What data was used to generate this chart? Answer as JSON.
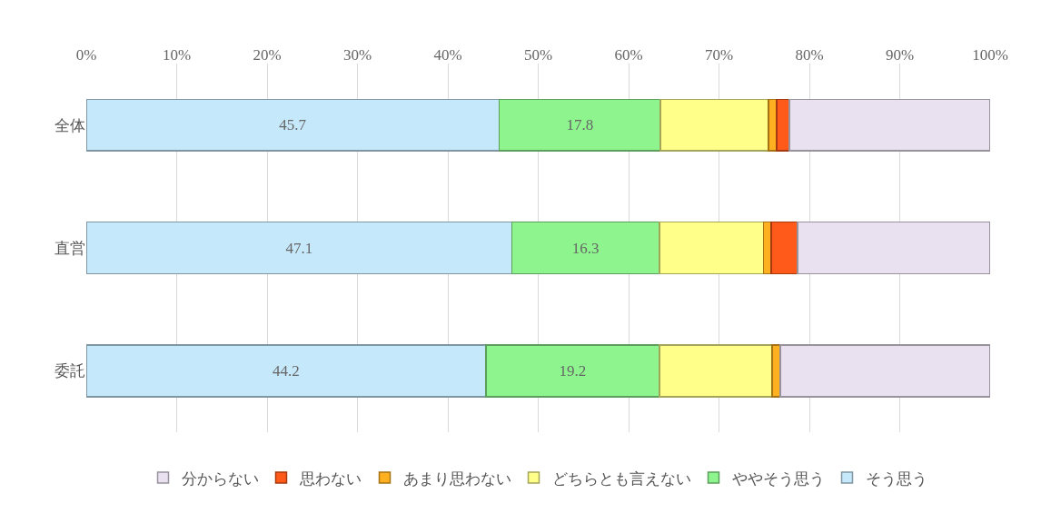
{
  "chart_data": {
    "type": "bar",
    "orientation": "horizontal",
    "stacked": true,
    "categories": [
      "全体",
      "直営",
      "委託"
    ],
    "series": [
      {
        "name": "そう思う",
        "color": "#c6e8fb",
        "values": [
          45.7,
          47.1,
          44.2
        ],
        "value_labels": [
          "45.7",
          "47.1",
          "44.2"
        ]
      },
      {
        "name": "ややそう思う",
        "color": "#8ef58e",
        "values": [
          17.8,
          16.3,
          19.2
        ],
        "value_labels": [
          "17.8",
          "16.3",
          "19.2"
        ]
      },
      {
        "name": "どちらとも言えない",
        "color": "#ffff8a",
        "values": [
          12.0,
          11.5,
          12.5
        ]
      },
      {
        "name": "あまり思わない",
        "color": "#ffb020",
        "values": [
          0.9,
          0.9,
          0.9
        ]
      },
      {
        "name": "思わない",
        "color": "#ff5a1a",
        "values": [
          1.4,
          2.9,
          0
        ]
      },
      {
        "name": "分からない",
        "color": "#e9e1f0",
        "values": [
          22.2,
          21.3,
          23.2
        ]
      }
    ],
    "xlim": [
      0,
      100
    ],
    "xticks": [
      {
        "value": 0,
        "label": "0%"
      },
      {
        "value": 10,
        "label": "10%"
      },
      {
        "value": 20,
        "label": "20%"
      },
      {
        "value": 30,
        "label": "30%"
      },
      {
        "value": 40,
        "label": "40%"
      },
      {
        "value": 50,
        "label": "50%"
      },
      {
        "value": 60,
        "label": "60%"
      },
      {
        "value": 70,
        "label": "70%"
      },
      {
        "value": 80,
        "label": "80%"
      },
      {
        "value": 90,
        "label": "90%"
      },
      {
        "value": 100,
        "label": "100%"
      }
    ],
    "grid": "x",
    "legend": "bottom"
  }
}
